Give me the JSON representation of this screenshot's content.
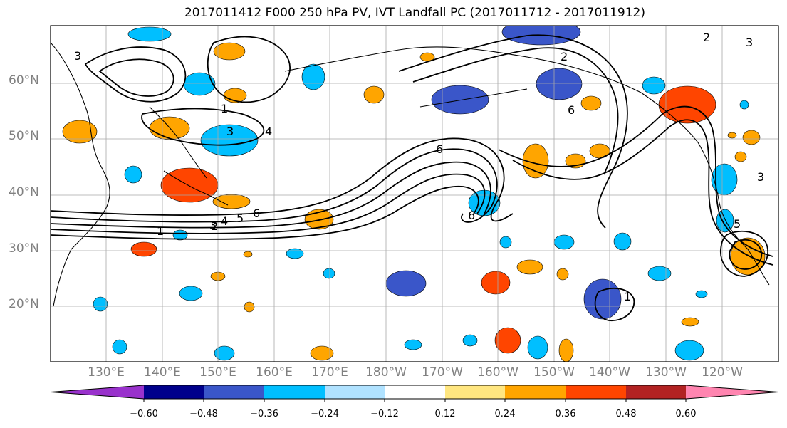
{
  "title": "2017011412 F000 250 hPa PV, IVT Landfall PC (2017011712 - 2017011912)",
  "lat_labels": [
    "60°N",
    "50°N",
    "40°N",
    "30°N",
    "20°N"
  ],
  "lon_labels": [
    "130°E",
    "140°E",
    "150°E",
    "160°E",
    "170°E",
    "180°W",
    "170°W",
    "160°W",
    "150°W",
    "140°W",
    "130°W",
    "120°W"
  ],
  "colorbar": {
    "ticks": [
      "−0.60",
      "−0.48",
      "−0.36",
      "−0.24",
      "−0.12",
      "0.12",
      "0.24",
      "0.36",
      "0.48",
      "0.60"
    ],
    "colors": [
      "#9932cc",
      "#00008b",
      "#3a56c9",
      "#00bfff",
      "#b0e2ff",
      "#ffffff",
      "#ffe680",
      "#ffa500",
      "#ff4500",
      "#b22222",
      "#ff85b0"
    ]
  },
  "contour_labels": [
    "1",
    "2",
    "3",
    "4",
    "5",
    "6"
  ],
  "colors": {
    "negative_strong": "#3a56c9",
    "negative": "#00bfff",
    "positive": "#ffa500",
    "positive_strong": "#ff4500",
    "contour": "#000000",
    "grid": "#a9a9a9"
  }
}
